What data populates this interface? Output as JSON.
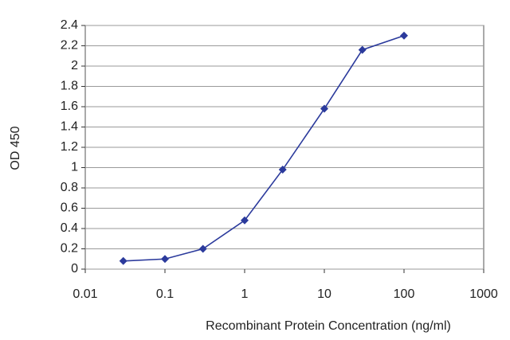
{
  "chart_data": {
    "type": "line",
    "x_label": "Recombinant Protein Concentration (ng/ml)",
    "y_label": "OD 450",
    "x": [
      0.03,
      0.1,
      0.3,
      1,
      3,
      10,
      30,
      100
    ],
    "values": [
      0.08,
      0.1,
      0.2,
      0.48,
      0.98,
      1.58,
      2.16,
      2.3
    ],
    "color": "#2b3a9c",
    "xscale": "log",
    "xlim": [
      0.01,
      1000
    ],
    "xticks": [
      0.01,
      0.1,
      1,
      10,
      100,
      1000
    ],
    "ylim": [
      0,
      2.4
    ],
    "yticks": [
      0,
      0.2,
      0.4,
      0.6,
      0.8,
      1,
      1.2,
      1.4,
      1.6,
      1.8,
      2,
      2.2,
      2.4
    ],
    "grid": true
  }
}
